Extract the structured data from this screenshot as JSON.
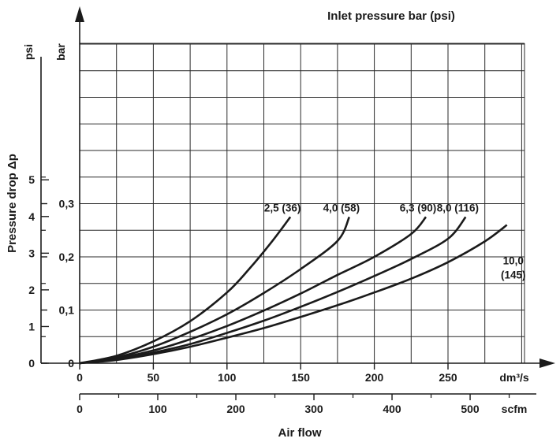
{
  "chart_data": {
    "type": "line",
    "title": "Inlet pressure bar (psi)",
    "xlabel": "Air flow",
    "ylabel": "Pressure drop Δp",
    "x_unit_primary": "dm³/s",
    "x_unit_secondary": "scfm",
    "y_unit_left": "psi",
    "y_unit_right": "bar",
    "xlim": [
      0,
      300
    ],
    "ylim_bar": [
      0,
      0.4
    ],
    "x_ticks_primary": [
      "0",
      "50",
      "100",
      "150",
      "200",
      "250"
    ],
    "x_ticks_secondary": [
      "0",
      "100",
      "200",
      "300",
      "400",
      "500"
    ],
    "y_ticks_psi": [
      "0",
      "1",
      "2",
      "3",
      "4",
      "5"
    ],
    "y_ticks_bar": [
      "0",
      "0,1",
      "0,2",
      "0,3"
    ],
    "series": [
      {
        "name": "2,5 (36)",
        "points": [
          [
            0,
            0
          ],
          [
            25,
            0.014
          ],
          [
            50,
            0.041
          ],
          [
            75,
            0.079
          ],
          [
            100,
            0.133
          ],
          [
            115,
            0.177
          ],
          [
            130,
            0.227
          ],
          [
            143,
            0.275
          ]
        ]
      },
      {
        "name": "4,0 (58)",
        "points": [
          [
            0,
            0
          ],
          [
            25,
            0.011
          ],
          [
            50,
            0.031
          ],
          [
            75,
            0.059
          ],
          [
            100,
            0.092
          ],
          [
            125,
            0.132
          ],
          [
            150,
            0.177
          ],
          [
            175,
            0.23
          ],
          [
            183,
            0.275
          ]
        ]
      },
      {
        "name": "6,3 (90)",
        "points": [
          [
            0,
            0
          ],
          [
            25,
            0.009
          ],
          [
            50,
            0.024
          ],
          [
            75,
            0.045
          ],
          [
            100,
            0.07
          ],
          [
            125,
            0.099
          ],
          [
            150,
            0.131
          ],
          [
            175,
            0.166
          ],
          [
            200,
            0.2
          ],
          [
            225,
            0.243
          ],
          [
            235,
            0.275
          ]
        ]
      },
      {
        "name": "8,0 (116)",
        "points": [
          [
            0,
            0
          ],
          [
            25,
            0.007
          ],
          [
            50,
            0.02
          ],
          [
            75,
            0.036
          ],
          [
            100,
            0.057
          ],
          [
            125,
            0.08
          ],
          [
            150,
            0.106
          ],
          [
            175,
            0.134
          ],
          [
            200,
            0.164
          ],
          [
            225,
            0.196
          ],
          [
            250,
            0.234
          ],
          [
            262,
            0.275
          ]
        ]
      },
      {
        "name": "10,0 (145)",
        "points": [
          [
            0,
            0
          ],
          [
            25,
            0.006
          ],
          [
            50,
            0.017
          ],
          [
            75,
            0.031
          ],
          [
            100,
            0.048
          ],
          [
            125,
            0.066
          ],
          [
            150,
            0.087
          ],
          [
            175,
            0.109
          ],
          [
            200,
            0.133
          ],
          [
            225,
            0.159
          ],
          [
            250,
            0.19
          ],
          [
            275,
            0.229
          ],
          [
            290,
            0.26
          ]
        ]
      }
    ],
    "grid": true
  }
}
